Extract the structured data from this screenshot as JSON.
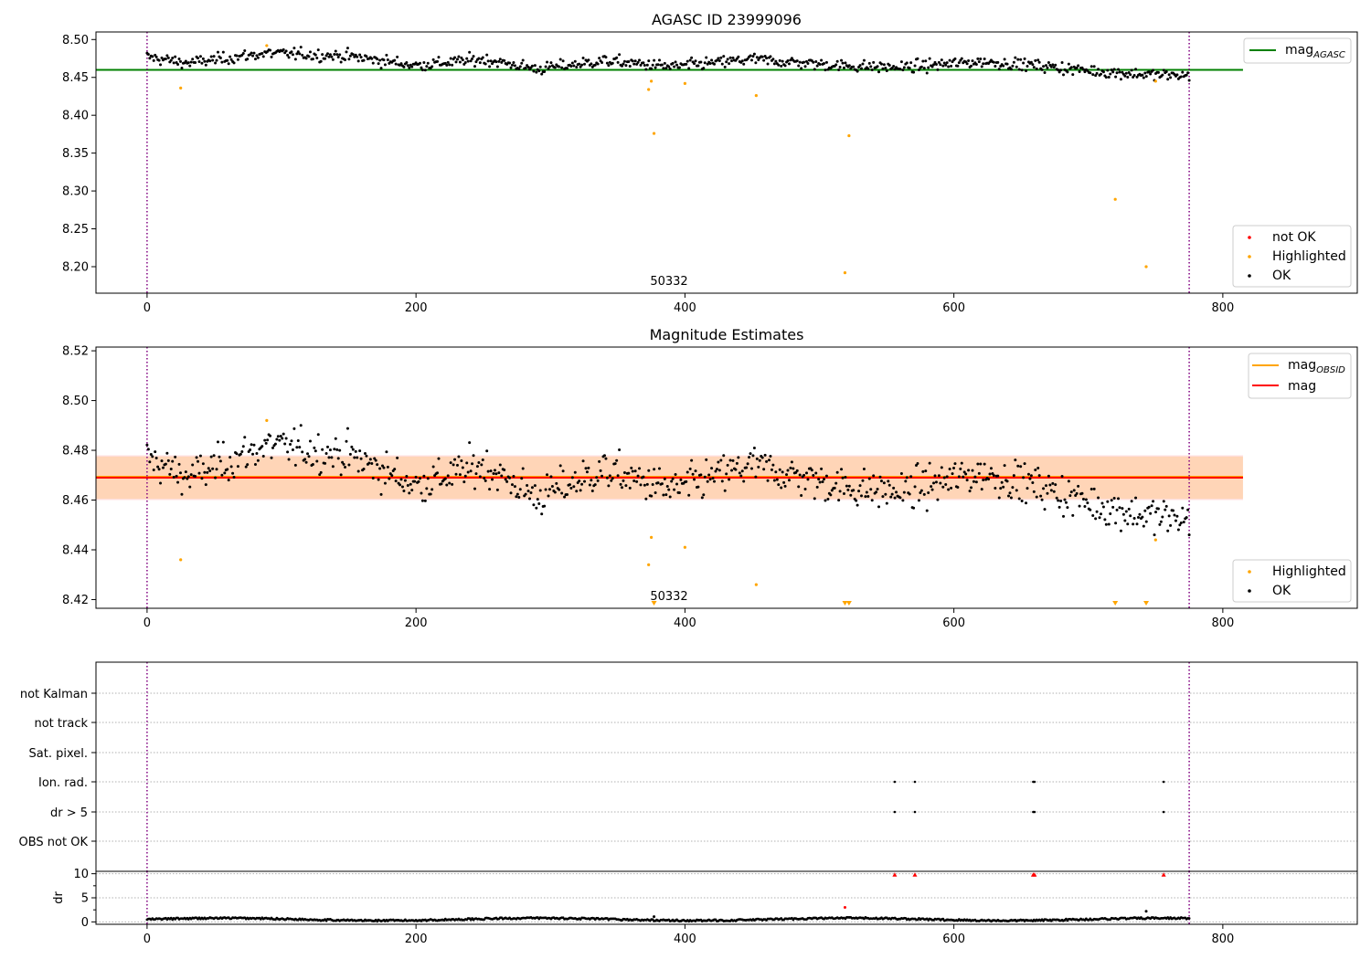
{
  "chart_data": [
    {
      "type": "scatter",
      "title": "AGASC ID 23999096",
      "xlim": [
        -38,
        900
      ],
      "ylim": [
        8.165,
        8.51
      ],
      "xticks": [
        "0",
        "200",
        "400",
        "600",
        "800"
      ],
      "yticks": [
        "8.20",
        "8.25",
        "8.30",
        "8.35",
        "8.40",
        "8.45",
        "8.50"
      ],
      "obsid_bounds": [
        0,
        775
      ],
      "obsid_label": "50332",
      "mag_agasc": 8.46,
      "mag_agasc_xrange": [
        -38,
        815
      ],
      "legend_lines": [
        {
          "label": "mag",
          "sub": "AGASC",
          "color": "#008000"
        }
      ],
      "legend_points": [
        {
          "label": "not OK",
          "color": "#ff0000"
        },
        {
          "label": "Highlighted",
          "color": "#ffa500"
        },
        {
          "label": "OK",
          "color": "#000000"
        }
      ],
      "highlighted": [
        [
          25,
          8.436
        ],
        [
          89,
          8.492
        ],
        [
          373,
          8.434
        ],
        [
          375,
          8.445
        ],
        [
          377,
          8.376
        ],
        [
          400,
          8.442
        ],
        [
          453,
          8.426
        ],
        [
          519,
          8.192
        ],
        [
          522,
          8.373
        ],
        [
          720,
          8.289
        ],
        [
          743,
          8.2
        ],
        [
          750,
          8.445
        ]
      ],
      "not_ok": []
    },
    {
      "type": "scatter",
      "title": "Magnitude Estimates",
      "xlim": [
        -38,
        900
      ],
      "ylim": [
        8.4165,
        8.5215
      ],
      "xticks": [
        "0",
        "200",
        "400",
        "600",
        "800"
      ],
      "yticks": [
        "8.42",
        "8.44",
        "8.46",
        "8.48",
        "8.50",
        "8.52"
      ],
      "obsid_bounds": [
        0,
        775
      ],
      "obsid_label": "50332",
      "mag": 8.469,
      "mag_band": [
        8.46,
        8.478
      ],
      "mag_obsid": 8.469,
      "mag_obsid_band": [
        8.4605,
        8.4775
      ],
      "line_xrange": [
        -38,
        815
      ],
      "legend_lines": [
        {
          "label": "mag",
          "sub": "OBSID",
          "color": "#ffa500"
        },
        {
          "label": "mag",
          "sub": "",
          "color": "#ff0000"
        }
      ],
      "legend_points": [
        {
          "label": "Highlighted",
          "color": "#ffa500"
        },
        {
          "label": "OK",
          "color": "#000000"
        }
      ],
      "highlighted": [
        [
          25,
          8.436
        ],
        [
          89,
          8.492
        ],
        [
          373,
          8.434
        ],
        [
          375,
          8.445
        ],
        [
          400,
          8.441
        ],
        [
          453,
          8.426
        ],
        [
          750,
          8.444
        ]
      ],
      "below_range": [
        377,
        519,
        522,
        720,
        743
      ]
    },
    {
      "type": "scatter",
      "title": "",
      "xlim": [
        -38,
        900
      ],
      "categories": [
        "not Kalman",
        "not track",
        "Sat. pixel.",
        "Ion. rad.",
        "dr > 5",
        "OBS not OK"
      ],
      "flags": {
        "Ion. rad.": [
          556,
          571,
          659,
          660,
          756
        ],
        "dr > 5": [
          556,
          571,
          659,
          660,
          756
        ]
      },
      "obsid_bounds": [
        0,
        775
      ]
    },
    {
      "type": "scatter",
      "title": "",
      "ylabel": "dr",
      "xlim": [
        -38,
        900
      ],
      "ylim": [
        -0.5,
        10.5
      ],
      "xticks": [
        "0",
        "200",
        "400",
        "600",
        "800"
      ],
      "yticks": [
        "0",
        "5",
        "10"
      ],
      "obsid_bounds": [
        0,
        775
      ],
      "dr_highlighted": [
        [
          377,
          1.1
        ],
        [
          519,
          3.0
        ],
        [
          743,
          2.2
        ]
      ],
      "dr_not_ok": [
        [
          556,
          9.8
        ],
        [
          571,
          9.8
        ],
        [
          659,
          9.8
        ],
        [
          660,
          9.8
        ],
        [
          756,
          9.8
        ]
      ]
    }
  ]
}
